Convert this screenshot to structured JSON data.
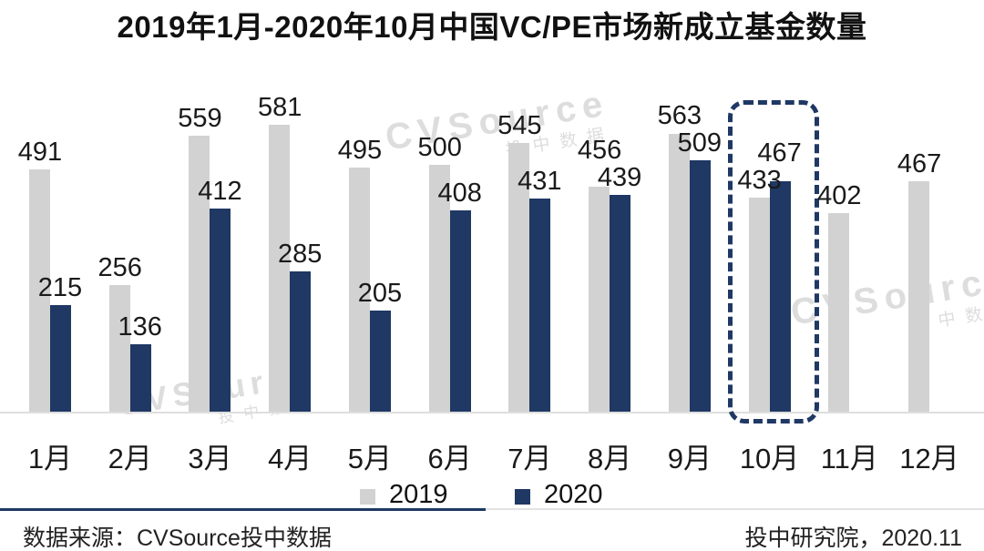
{
  "title": "2019年1月-2020年10月中国VC/PE市场新成立基金数量",
  "chart_data": {
    "type": "bar",
    "title": "2019年1月-2020年10月中国VC/PE市场新成立基金数量",
    "categories": [
      "1月",
      "2月",
      "3月",
      "4月",
      "5月",
      "6月",
      "7月",
      "8月",
      "9月",
      "10月",
      "11月",
      "12月"
    ],
    "series": [
      {
        "name": "2019",
        "color": "#d2d2d2",
        "values": [
          491,
          256,
          559,
          581,
          495,
          500,
          545,
          456,
          563,
          433,
          402,
          467
        ]
      },
      {
        "name": "2020",
        "color": "#1f3864",
        "values": [
          215,
          136,
          412,
          285,
          205,
          408,
          431,
          439,
          509,
          467,
          null,
          null
        ]
      }
    ],
    "ylim": [
      0,
      620
    ],
    "grid": false,
    "legend_position": "bottom",
    "data_labels": true,
    "highlight_category": "10月",
    "highlight_style": "dashed-box",
    "xlabel": "",
    "ylabel": ""
  },
  "legend": {
    "items": [
      {
        "label": "2019",
        "color": "#d2d2d2"
      },
      {
        "label": "2020",
        "color": "#1f3864"
      }
    ]
  },
  "colors": {
    "accent_navy": "#1f3864",
    "bar_gray": "#d2d2d2",
    "axis_line": "#dedede",
    "divider_light": "#e2e2e2"
  },
  "watermark": {
    "text": "CVSource",
    "subtext": "投中数据"
  },
  "footer": {
    "source": "数据来源：CVSource投中数据",
    "publisher": "投中研究院，2020.11"
  }
}
